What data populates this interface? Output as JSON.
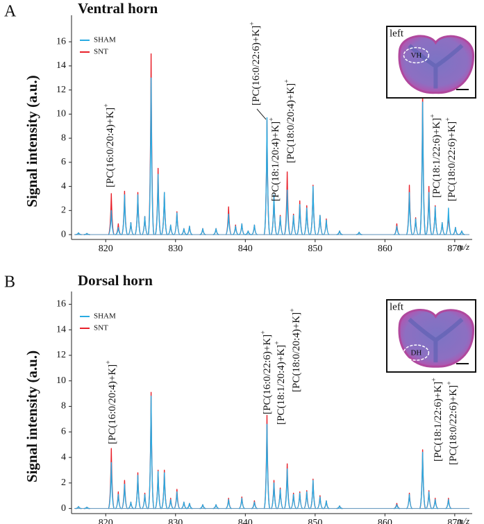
{
  "chart_data": [
    {
      "type": "peaks",
      "panel": "A",
      "title": "Ventral horn",
      "y_label": "Signal intensity (a.u.)",
      "x_label": "m/z",
      "x": [
        816.1,
        817.3,
        820.8,
        821.8,
        822.7,
        823.6,
        824.6,
        825.6,
        826.5,
        827.5,
        828.4,
        829.3,
        830.2,
        831.2,
        832.0,
        833.9,
        835.8,
        837.6,
        838.6,
        839.5,
        840.4,
        841.3,
        843.1,
        844.1,
        845.0,
        846.0,
        846.9,
        847.8,
        848.8,
        849.7,
        850.7,
        851.6,
        853.5,
        856.3,
        861.7,
        863.5,
        864.4,
        865.4,
        866.3,
        867.2,
        868.2,
        869.1,
        870.1,
        871.0
      ],
      "series": [
        {
          "name": "SNT",
          "color": "#e8202a",
          "values": [
            0.15,
            0.1,
            3.4,
            0.9,
            3.6,
            1.0,
            3.5,
            1.5,
            15.0,
            5.5,
            3.5,
            0.8,
            1.9,
            0.5,
            0.7,
            0.5,
            0.5,
            2.3,
            0.8,
            0.9,
            0.3,
            0.8,
            9.5,
            3.3,
            1.6,
            5.2,
            1.7,
            2.8,
            2.4,
            4.1,
            1.6,
            1.3,
            0.3,
            0.2,
            0.9,
            4.1,
            1.4,
            12.0,
            4.0,
            2.4,
            1.0,
            1.7,
            0.6,
            0.3
          ]
        },
        {
          "name": "SHAM",
          "color": "#29abe2",
          "values": [
            0.15,
            0.1,
            2.0,
            0.6,
            3.3,
            1.0,
            3.3,
            1.5,
            13.0,
            5.0,
            3.5,
            0.8,
            1.8,
            0.5,
            0.7,
            0.5,
            0.5,
            1.7,
            0.7,
            0.9,
            0.3,
            0.8,
            9.7,
            3.3,
            1.5,
            3.7,
            1.6,
            2.5,
            2.2,
            4.0,
            1.6,
            1.2,
            0.3,
            0.2,
            0.7,
            3.5,
            1.3,
            11.0,
            3.5,
            2.3,
            1.0,
            2.2,
            0.6,
            0.3
          ]
        }
      ],
      "xlim": [
        815.1,
        872.5
      ],
      "xticks": [
        820,
        830,
        840,
        850,
        860,
        870
      ],
      "ylim": [
        -0.4,
        18.2
      ],
      "yticks": [
        0,
        2,
        4,
        6,
        8,
        10,
        12,
        14,
        16
      ],
      "annotations": [
        {
          "text": "[PC(16:0/20:4)+K]",
          "charge": "+"
        },
        {
          "text": "[PC(16:0/22:6)+K]",
          "charge": "+"
        },
        {
          "text": "[PC(18:1/20:4)+K]",
          "charge": "+"
        },
        {
          "text": "[PC(18:0/20:4)+K]",
          "charge": "+"
        },
        {
          "text": "[PC(18:1/22:6)+K]",
          "charge": "+"
        },
        {
          "text": "[PC(18:0/22:6)+K]",
          "charge": "+"
        }
      ],
      "inset": {
        "side": "left",
        "region": "VH"
      }
    },
    {
      "type": "peaks",
      "panel": "B",
      "title": "Dorsal horn",
      "y_label": "Signal intensity (a.u.)",
      "x_label": "m/z",
      "x": [
        816.1,
        817.3,
        820.8,
        821.8,
        822.7,
        823.6,
        824.6,
        825.6,
        826.5,
        827.5,
        828.4,
        829.3,
        830.2,
        831.2,
        832.0,
        833.9,
        835.8,
        837.6,
        839.5,
        841.3,
        843.1,
        844.1,
        845.0,
        846.0,
        846.9,
        847.8,
        848.8,
        849.7,
        850.7,
        851.6,
        853.5,
        861.7,
        863.5,
        865.4,
        866.3,
        867.2,
        869.1
      ],
      "series": [
        {
          "name": "SNT",
          "color": "#e8202a",
          "values": [
            0.15,
            0.1,
            4.7,
            1.3,
            2.2,
            0.5,
            2.8,
            1.2,
            9.1,
            3.0,
            3.0,
            0.8,
            1.5,
            0.5,
            0.4,
            0.3,
            0.3,
            0.8,
            0.9,
            0.6,
            7.3,
            2.2,
            1.6,
            3.5,
            1.2,
            1.3,
            1.4,
            2.3,
            1.0,
            0.6,
            0.2,
            0.4,
            1.2,
            4.6,
            1.4,
            0.8,
            0.8
          ]
        },
        {
          "name": "SHAM",
          "color": "#29abe2",
          "values": [
            0.15,
            0.1,
            3.6,
            1.1,
            1.9,
            0.5,
            2.6,
            1.1,
            8.8,
            2.9,
            2.8,
            0.7,
            1.3,
            0.5,
            0.4,
            0.3,
            0.3,
            0.7,
            0.8,
            0.5,
            6.6,
            2.0,
            1.5,
            3.1,
            1.1,
            1.2,
            1.3,
            2.2,
            0.9,
            0.6,
            0.2,
            0.3,
            1.1,
            4.4,
            1.3,
            0.7,
            0.7
          ]
        }
      ],
      "xlim": [
        815.1,
        872.5
      ],
      "xticks": [
        820,
        830,
        840,
        850,
        860,
        870
      ],
      "ylim": [
        -0.4,
        17.0
      ],
      "yticks": [
        0,
        2,
        4,
        6,
        8,
        10,
        12,
        14,
        16
      ],
      "annotations": [
        {
          "text": "[PC(16:0/20:4)+K]",
          "charge": "+"
        },
        {
          "text": "[PC(16:0/22:6)+K]",
          "charge": "+"
        },
        {
          "text": "[PC(18:1/20:4)+K]",
          "charge": "+"
        },
        {
          "text": "[PC(18:0/20:4)+K]",
          "charge": "+"
        },
        {
          "text": "[PC(18:1/22:6)+K]",
          "charge": "+"
        },
        {
          "text": "[PC(18:0/22:6)+K]",
          "charge": "+"
        }
      ],
      "inset": {
        "side": "left",
        "region": "DH"
      }
    }
  ]
}
